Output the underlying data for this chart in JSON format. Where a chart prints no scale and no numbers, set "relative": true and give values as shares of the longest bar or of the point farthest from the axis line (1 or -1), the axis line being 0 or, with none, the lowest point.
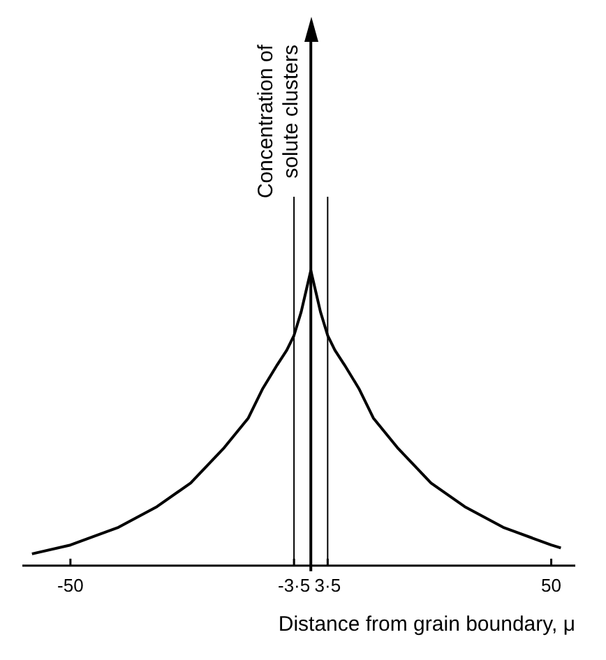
{
  "chart_data": {
    "type": "line",
    "relative": true,
    "xlabel": "Distance from grain boundary, μ",
    "ylabel": "Concentration of solute clusters",
    "series": [
      {
        "color": "#000000",
        "x": [
          -58,
          -50,
          -40,
          -32,
          -25,
          -18,
          -13,
          -10,
          -7,
          -5,
          -3.5,
          -2,
          -1,
          0,
          1,
          2,
          3.5,
          5,
          7,
          10,
          13,
          18,
          25,
          32,
          40,
          50,
          52
        ],
        "values": [
          0.04,
          0.07,
          0.13,
          0.2,
          0.28,
          0.4,
          0.5,
          0.6,
          0.68,
          0.73,
          0.78,
          0.86,
          0.93,
          1,
          0.93,
          0.86,
          0.78,
          0.73,
          0.68,
          0.6,
          0.5,
          0.4,
          0.28,
          0.2,
          0.13,
          0.07,
          0.06
        ]
      }
    ],
    "xlim": [
      -60,
      55
    ],
    "xticks": [
      -50,
      {
        "value": -3.5,
        "label": "-3·5"
      },
      {
        "value": 3.5,
        "label": "3·5"
      },
      50
    ],
    "ref_lines": [
      {
        "axis": "x",
        "value": -3.5,
        "color": "#000000"
      },
      {
        "axis": "x",
        "value": 3.5,
        "color": "#000000"
      }
    ],
    "grid": false,
    "legend": false,
    "marker": "none",
    "line_style": "solid"
  }
}
